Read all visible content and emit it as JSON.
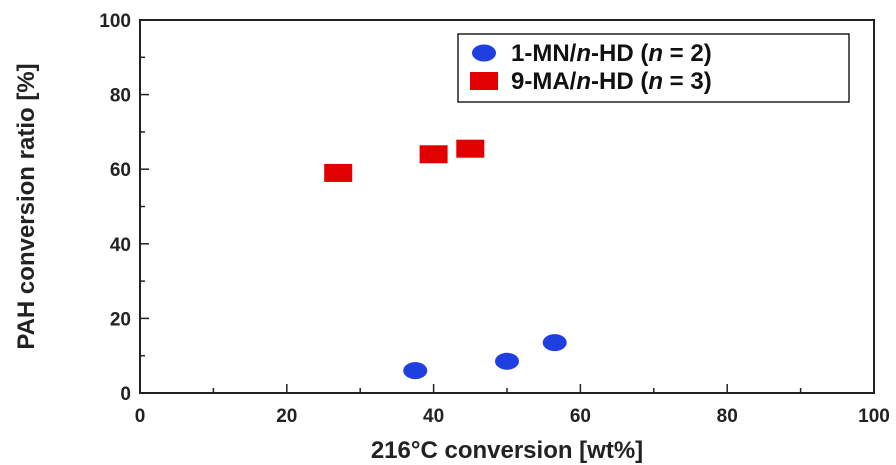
{
  "chart_data": {
    "type": "scatter",
    "xlabel": "216°C conversion [wt%]",
    "ylabel": "PAH conversion ratio [%]",
    "xlim": [
      0,
      100
    ],
    "ylim": [
      0,
      100
    ],
    "x_ticks": [
      0,
      20,
      40,
      60,
      80,
      100
    ],
    "y_ticks": [
      0,
      20,
      40,
      60,
      80,
      100
    ],
    "grid": false,
    "legend_position": "top-right",
    "series": [
      {
        "name_parts": [
          "1-MN/",
          "n",
          "-HD (",
          "n",
          " = 2)"
        ],
        "marker": "circle",
        "color": "#1f3fe0",
        "points": [
          {
            "x": 37.5,
            "y": 6
          },
          {
            "x": 50,
            "y": 8.5
          },
          {
            "x": 56.5,
            "y": 13.5
          }
        ]
      },
      {
        "name_parts": [
          "9-MA/",
          "n",
          "-HD (",
          "n",
          " = 3)"
        ],
        "marker": "square",
        "color": "#e00000",
        "points": [
          {
            "x": 27,
            "y": 59
          },
          {
            "x": 40,
            "y": 64
          },
          {
            "x": 45,
            "y": 65.5
          }
        ]
      }
    ]
  }
}
